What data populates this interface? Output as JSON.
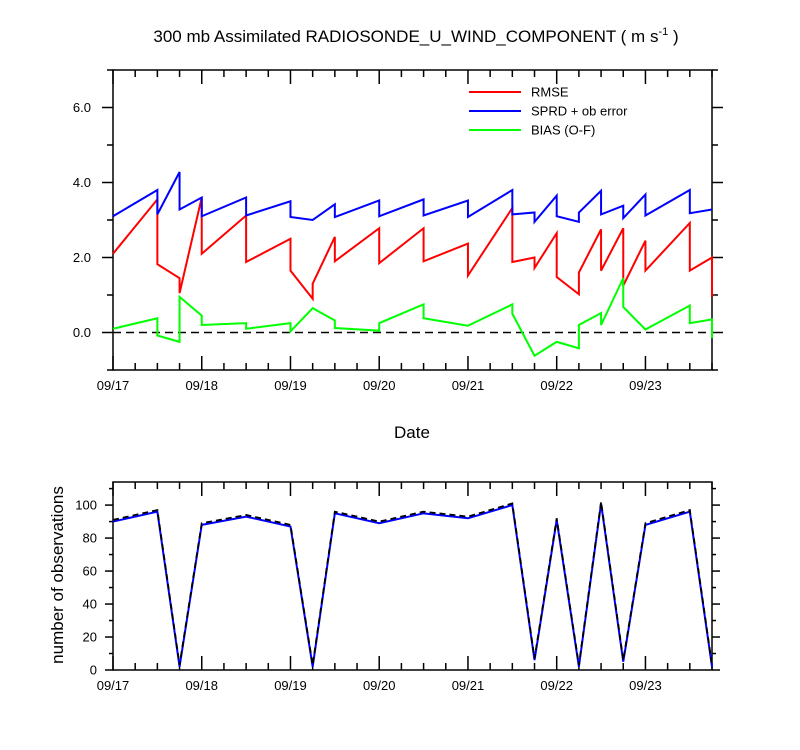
{
  "colors": {
    "rmse": "#ff0000",
    "sprd": "#0000ff",
    "bias": "#00ff00",
    "obs_line": "#0000ff",
    "obs_dash": "#000000",
    "zero_line": "#000000"
  },
  "chart_data": [
    {
      "type": "line",
      "title_main": "300 mb Assimilated RADIOSONDE_U_WIND_COMPONENT ( m s",
      "title_sup": "-1",
      "title_end": " )",
      "xlabel": "Date",
      "ylabel": "",
      "xlim": [
        0,
        6.75
      ],
      "ylim": [
        -1.0,
        7.0
      ],
      "x_ticks": [
        0,
        1,
        2,
        3,
        4,
        5,
        6
      ],
      "x_tick_labels": [
        "09/17",
        "09/18",
        "09/19",
        "09/20",
        "09/21",
        "09/22",
        "09/23"
      ],
      "y_ticks": [
        0.0,
        2.0,
        4.0,
        6.0
      ],
      "y_tick_labels": [
        "0.0",
        "2.0",
        "4.0",
        "6.0"
      ],
      "zero_line": true,
      "legend": [
        "RMSE",
        "SPRD + ob error",
        "BIAS (O-F)"
      ],
      "series": [
        {
          "name": "RMSE",
          "color_key": "rmse",
          "points": [
            [
              0,
              2.1
            ],
            [
              0.5,
              3.55
            ],
            [
              0.5,
              1.82
            ],
            [
              0.75,
              1.45
            ],
            [
              0.75,
              1.05
            ],
            [
              1,
              3.6
            ],
            [
              1,
              2.1
            ],
            [
              1.5,
              3.12
            ],
            [
              1.5,
              1.88
            ],
            [
              2,
              2.5
            ],
            [
              2,
              1.65
            ],
            [
              2.25,
              0.9
            ],
            [
              2.25,
              1.3
            ],
            [
              2.5,
              2.55
            ],
            [
              2.5,
              1.9
            ],
            [
              3,
              2.78
            ],
            [
              3,
              1.85
            ],
            [
              3.5,
              2.78
            ],
            [
              3.5,
              1.9
            ],
            [
              4,
              2.37
            ],
            [
              4,
              1.52
            ],
            [
              4.5,
              3.32
            ],
            [
              4.5,
              1.88
            ],
            [
              4.75,
              2.0
            ],
            [
              4.75,
              1.72
            ],
            [
              5,
              2.65
            ],
            [
              5,
              1.48
            ],
            [
              5.25,
              1.02
            ],
            [
              5.25,
              1.6
            ],
            [
              5.5,
              2.75
            ],
            [
              5.5,
              1.65
            ],
            [
              5.75,
              2.78
            ],
            [
              5.75,
              1.25
            ],
            [
              6,
              2.45
            ],
            [
              6,
              1.65
            ],
            [
              6.5,
              2.92
            ],
            [
              6.5,
              1.65
            ],
            [
              6.75,
              2.0
            ],
            [
              6.75,
              0.95
            ]
          ]
        },
        {
          "name": "SPRD + ob error",
          "color_key": "sprd",
          "points": [
            [
              0,
              3.1
            ],
            [
              0.5,
              3.8
            ],
            [
              0.5,
              3.15
            ],
            [
              0.75,
              4.28
            ],
            [
              0.75,
              3.28
            ],
            [
              1,
              3.6
            ],
            [
              1,
              3.1
            ],
            [
              1.5,
              3.6
            ],
            [
              1.5,
              3.12
            ],
            [
              2,
              3.5
            ],
            [
              2,
              3.08
            ],
            [
              2.25,
              3.0
            ],
            [
              2.25,
              3.0
            ],
            [
              2.5,
              3.42
            ],
            [
              2.5,
              3.08
            ],
            [
              3,
              3.52
            ],
            [
              3,
              3.1
            ],
            [
              3.5,
              3.55
            ],
            [
              3.5,
              3.12
            ],
            [
              4,
              3.52
            ],
            [
              4,
              3.08
            ],
            [
              4.5,
              3.8
            ],
            [
              4.5,
              3.15
            ],
            [
              4.75,
              3.2
            ],
            [
              4.75,
              2.95
            ],
            [
              5,
              3.65
            ],
            [
              5,
              3.1
            ],
            [
              5.25,
              2.95
            ],
            [
              5.25,
              3.2
            ],
            [
              5.5,
              3.78
            ],
            [
              5.5,
              3.15
            ],
            [
              5.75,
              3.38
            ],
            [
              5.75,
              3.05
            ],
            [
              6,
              3.68
            ],
            [
              6,
              3.12
            ],
            [
              6.5,
              3.8
            ],
            [
              6.5,
              3.18
            ],
            [
              6.75,
              3.28
            ]
          ]
        },
        {
          "name": "BIAS (O-F)",
          "color_key": "bias",
          "points": [
            [
              0,
              0.1
            ],
            [
              0.5,
              0.38
            ],
            [
              0.5,
              -0.08
            ],
            [
              0.75,
              -0.25
            ],
            [
              0.75,
              0.95
            ],
            [
              1,
              0.45
            ],
            [
              1,
              0.2
            ],
            [
              1.5,
              0.25
            ],
            [
              1.5,
              0.1
            ],
            [
              2,
              0.25
            ],
            [
              2,
              0.03
            ],
            [
              2.25,
              0.65
            ],
            [
              2.5,
              0.32
            ],
            [
              2.5,
              0.12
            ],
            [
              3,
              0.05
            ],
            [
              3,
              0.25
            ],
            [
              3.5,
              0.75
            ],
            [
              3.5,
              0.38
            ],
            [
              4,
              0.18
            ],
            [
              4.5,
              0.75
            ],
            [
              4.5,
              0.5
            ],
            [
              4.75,
              -0.62
            ],
            [
              5,
              -0.25
            ],
            [
              5.25,
              -0.42
            ],
            [
              5.25,
              0.2
            ],
            [
              5.5,
              0.52
            ],
            [
              5.5,
              0.2
            ],
            [
              5.75,
              1.45
            ],
            [
              5.75,
              0.68
            ],
            [
              6,
              0.08
            ],
            [
              6.5,
              0.72
            ],
            [
              6.5,
              0.25
            ],
            [
              6.75,
              0.35
            ],
            [
              6.75,
              -0.15
            ]
          ]
        }
      ]
    },
    {
      "type": "line",
      "xlabel": "",
      "ylabel": "number of observations",
      "xlim": [
        0,
        6.75
      ],
      "ylim": [
        0,
        114
      ],
      "x_ticks": [
        0,
        1,
        2,
        3,
        4,
        5,
        6
      ],
      "x_tick_labels": [
        "09/17",
        "09/18",
        "09/19",
        "09/20",
        "09/21",
        "09/22",
        "09/23"
      ],
      "y_ticks": [
        0,
        20,
        40,
        60,
        80,
        100
      ],
      "y_tick_labels": [
        "0",
        "20",
        "40",
        "60",
        "80",
        "100"
      ],
      "series": [
        {
          "name": "observations (solid)",
          "color_key": "obs_line",
          "points": [
            [
              0,
              90
            ],
            [
              0.5,
              96
            ],
            [
              0.75,
              2
            ],
            [
              1,
              88
            ],
            [
              1.5,
              93
            ],
            [
              2,
              87
            ],
            [
              2.25,
              2
            ],
            [
              2.5,
              95
            ],
            [
              3,
              89
            ],
            [
              3.5,
              95
            ],
            [
              4,
              92
            ],
            [
              4.5,
              100
            ],
            [
              4.75,
              6
            ],
            [
              5,
              91
            ],
            [
              5.25,
              2
            ],
            [
              5.5,
              101
            ],
            [
              5.75,
              5
            ],
            [
              6,
              88
            ],
            [
              6.5,
              96
            ],
            [
              6.75,
              2
            ]
          ]
        },
        {
          "name": "observations (dashed)",
          "color_key": "obs_dash",
          "points": [
            [
              0,
              91
            ],
            [
              0.5,
              97
            ],
            [
              0.75,
              3
            ],
            [
              1,
              89
            ],
            [
              1.5,
              94
            ],
            [
              2,
              88
            ],
            [
              2.25,
              3
            ],
            [
              2.5,
              96
            ],
            [
              3,
              90
            ],
            [
              3.5,
              96
            ],
            [
              4,
              93
            ],
            [
              4.5,
              101
            ],
            [
              4.75,
              7
            ],
            [
              5,
              92
            ],
            [
              5.25,
              3
            ],
            [
              5.5,
              102
            ],
            [
              5.75,
              6
            ],
            [
              6,
              89
            ],
            [
              6.5,
              97
            ],
            [
              6.75,
              3
            ]
          ]
        }
      ]
    }
  ]
}
